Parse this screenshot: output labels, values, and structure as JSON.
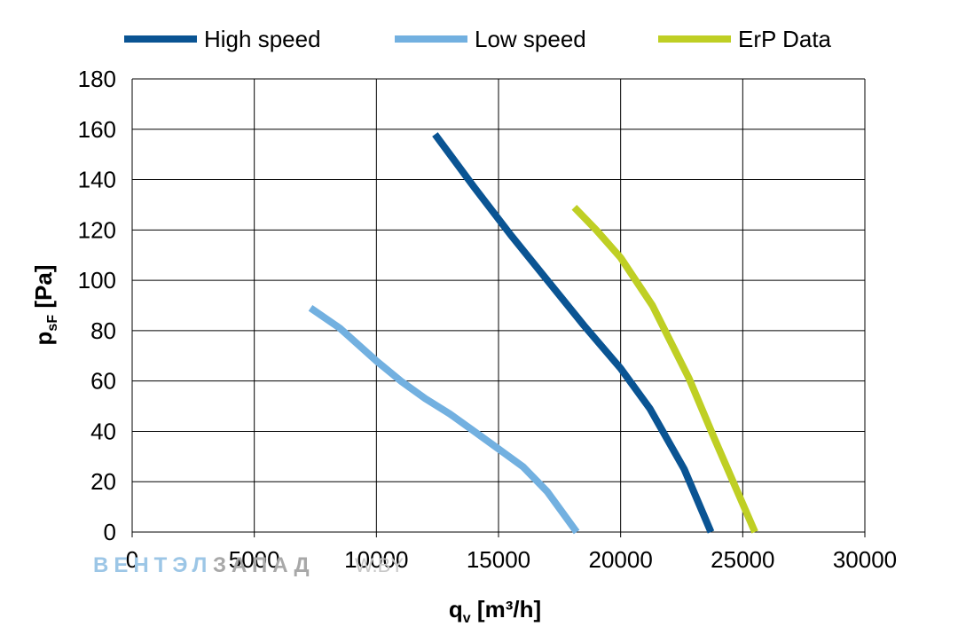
{
  "chart_data": {
    "type": "line",
    "x_ticks": [
      "0",
      "5000",
      "10000",
      "15000",
      "20000",
      "25000",
      "30000"
    ],
    "y_ticks": [
      "0",
      "20",
      "40",
      "60",
      "80",
      "100",
      "120",
      "140",
      "160",
      "180"
    ],
    "xlim": [
      0,
      30000
    ],
    "ylim": [
      0,
      180
    ],
    "xlabel": {
      "main": "q",
      "sub": "v",
      "rest": " [m³/h]"
    },
    "ylabel": {
      "main": "p",
      "sub": "sF",
      "rest": " [Pa]"
    },
    "grid": true,
    "legend_position": "top",
    "series": [
      {
        "name": "High speed",
        "color": "#0a5493",
        "points": [
          [
            12400,
            158
          ],
          [
            14000,
            137
          ],
          [
            15500,
            118
          ],
          [
            17000,
            100
          ],
          [
            18500,
            82
          ],
          [
            20000,
            65
          ],
          [
            21200,
            49
          ],
          [
            22600,
            25
          ],
          [
            23700,
            0
          ]
        ]
      },
      {
        "name": "Low speed",
        "color": "#72b0e0",
        "points": [
          [
            7300,
            89
          ],
          [
            8500,
            81
          ],
          [
            10000,
            68
          ],
          [
            11000,
            60
          ],
          [
            12000,
            53
          ],
          [
            13000,
            47
          ],
          [
            14000,
            40
          ],
          [
            15000,
            33
          ],
          [
            16000,
            26
          ],
          [
            17000,
            16
          ],
          [
            18200,
            0
          ]
        ]
      },
      {
        "name": "ErP Data",
        "color": "#bfcf24",
        "points": [
          [
            18100,
            129
          ],
          [
            19000,
            120
          ],
          [
            20000,
            109
          ],
          [
            21300,
            90
          ],
          [
            22800,
            61
          ],
          [
            23800,
            38
          ],
          [
            25500,
            0
          ]
        ]
      }
    ]
  },
  "watermark": {
    "part_a": "ВЕНТЭЛ",
    "part_b": "ЗАПАД",
    "part_c": "W.BY"
  }
}
